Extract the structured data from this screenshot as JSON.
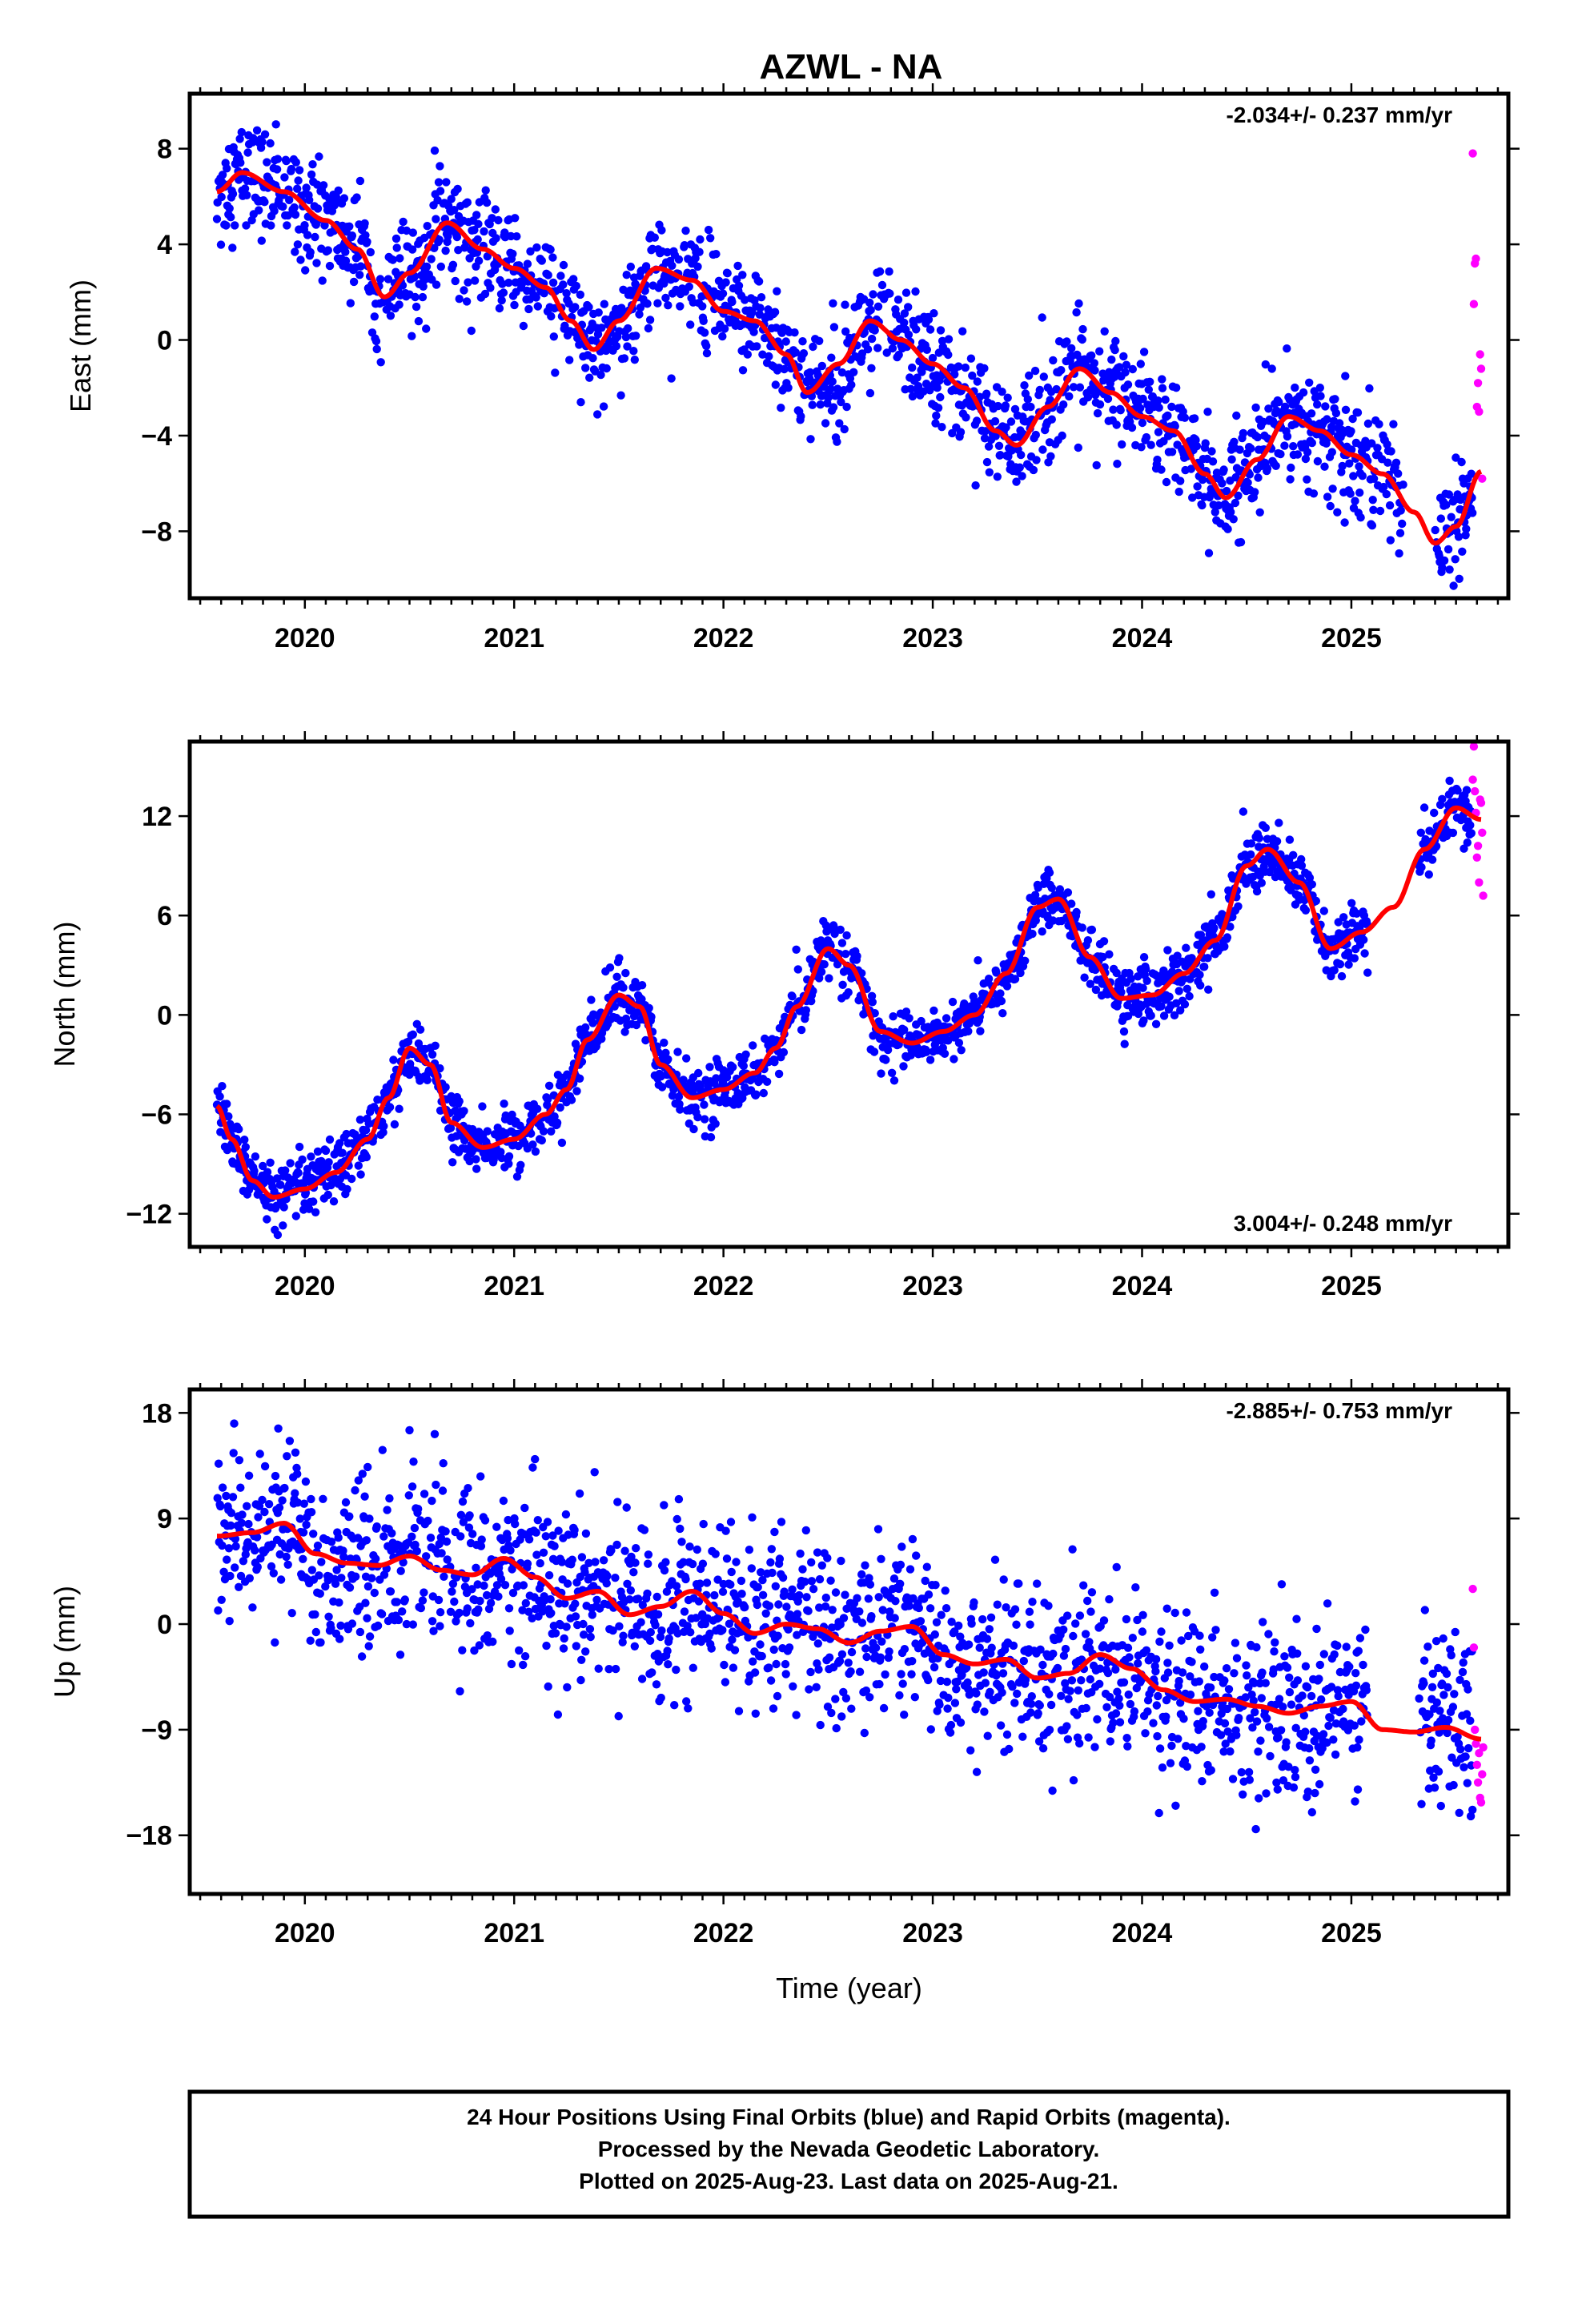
{
  "title": "AZWL - NA",
  "footer": {
    "line1": "24 Hour Positions Using Final Orbits (blue) and Rapid Orbits (magenta).",
    "line2": "Processed by the Nevada Geodetic Laboratory.",
    "line3": "Plotted on 2025-Aug-23. Last data on 2025-Aug-21."
  },
  "colors": {
    "final": "#0000ff",
    "rapid": "#ff00ff",
    "fit": "#ff0000",
    "frame": "#000000"
  },
  "chart_data": [
    {
      "type": "scatter",
      "component": "east",
      "ylabel": "East (mm)",
      "xlabel": "",
      "rate_label": "-2.034+/- 0.237 mm/yr",
      "rate_position": "top-right",
      "xlim": [
        2019.45,
        2025.75
      ],
      "ylim": [
        -10.8,
        10.3
      ],
      "yticks": [
        8,
        4,
        0,
        -4,
        -8
      ],
      "ytick_labels": [
        "8",
        "4",
        "0",
        "−4",
        "−8"
      ],
      "xticks": [
        2020,
        2021,
        2022,
        2023,
        2024,
        2025
      ],
      "xtick_labels": [
        "2020",
        "2021",
        "2022",
        "2023",
        "2024",
        "2025"
      ],
      "grid": false,
      "final_start": 2019.58,
      "final_end": 2025.58,
      "final_gap": [
        2025.25,
        2025.4
      ],
      "noise": 1.1,
      "fit_curve": {
        "x": [
          2019.58,
          2019.7,
          2019.9,
          2020.1,
          2020.25,
          2020.38,
          2020.5,
          2020.68,
          2020.85,
          2021.0,
          2021.15,
          2021.27,
          2021.38,
          2021.5,
          2021.68,
          2021.85,
          2022.0,
          2022.15,
          2022.3,
          2022.4,
          2022.55,
          2022.7,
          2022.85,
          2023.0,
          2023.15,
          2023.3,
          2023.4,
          2023.55,
          2023.7,
          2023.85,
          2024.0,
          2024.15,
          2024.3,
          2024.4,
          2024.55,
          2024.7,
          2024.85,
          2025.0,
          2025.15,
          2025.3,
          2025.4,
          2025.5,
          2025.62
        ],
        "y": [
          6.2,
          7.0,
          6.2,
          5.0,
          3.8,
          1.8,
          2.8,
          4.9,
          3.8,
          3.0,
          2.2,
          0.8,
          -0.4,
          0.8,
          3.0,
          2.5,
          1.2,
          0.8,
          -0.6,
          -2.2,
          -1.0,
          0.8,
          0.0,
          -1.0,
          -2.0,
          -3.8,
          -4.4,
          -2.8,
          -1.2,
          -2.2,
          -3.2,
          -3.8,
          -5.6,
          -6.6,
          -5.0,
          -3.2,
          -3.8,
          -4.8,
          -5.6,
          -7.2,
          -8.5,
          -7.8,
          -5.5
        ]
      },
      "rapid_points": {
        "x": [
          2025.58,
          2025.585,
          2025.59,
          2025.595,
          2025.6,
          2025.605,
          2025.61,
          2025.615,
          2025.62,
          2025.625
        ],
        "y": [
          7.8,
          1.5,
          3.2,
          3.4,
          -2.8,
          -1.8,
          -3.0,
          -0.6,
          -1.2,
          -5.8
        ]
      }
    },
    {
      "type": "scatter",
      "component": "north",
      "ylabel": "North (mm)",
      "xlabel": "",
      "rate_label": "3.004+/- 0.248 mm/yr",
      "rate_position": "bottom-right",
      "xlim": [
        2019.45,
        2025.75
      ],
      "ylim": [
        -14.0,
        16.5
      ],
      "yticks": [
        12,
        6,
        0,
        -6,
        -12
      ],
      "ytick_labels": [
        "12",
        "6",
        "0",
        "−6",
        "−12"
      ],
      "xticks": [
        2020,
        2021,
        2022,
        2023,
        2024,
        2025
      ],
      "xtick_labels": [
        "2020",
        "2021",
        "2022",
        "2023",
        "2024",
        "2025"
      ],
      "grid": false,
      "final_start": 2019.58,
      "final_end": 2025.58,
      "final_gap": [
        2025.08,
        2025.32
      ],
      "noise": 0.9,
      "fit_curve": {
        "x": [
          2019.58,
          2019.65,
          2019.75,
          2019.85,
          2020.0,
          2020.15,
          2020.3,
          2020.4,
          2020.5,
          2020.6,
          2020.7,
          2020.85,
          2021.0,
          2021.15,
          2021.25,
          2021.35,
          2021.5,
          2021.6,
          2021.7,
          2021.85,
          2022.0,
          2022.15,
          2022.25,
          2022.35,
          2022.5,
          2022.6,
          2022.75,
          2022.9,
          2023.05,
          2023.2,
          2023.35,
          2023.5,
          2023.6,
          2023.75,
          2023.9,
          2024.05,
          2024.2,
          2024.35,
          2024.5,
          2024.6,
          2024.75,
          2024.9,
          2025.05,
          2025.2,
          2025.35,
          2025.5,
          2025.62
        ],
        "y": [
          -5.5,
          -7.5,
          -10.0,
          -11.0,
          -10.5,
          -9.5,
          -7.5,
          -5.0,
          -2.0,
          -3.0,
          -6.5,
          -8.0,
          -7.5,
          -6.0,
          -4.5,
          -1.5,
          1.2,
          0.5,
          -3.0,
          -5.0,
          -4.5,
          -3.5,
          -2.0,
          0.5,
          4.0,
          3.0,
          -1.0,
          -1.7,
          -1.0,
          0.0,
          2.5,
          6.5,
          7.0,
          3.5,
          1.0,
          1.2,
          2.5,
          4.5,
          9.0,
          10.0,
          8.0,
          4.0,
          5.0,
          6.5,
          10.0,
          12.5,
          11.8
        ]
      },
      "rapid_points": {
        "x": [
          2025.58,
          2025.585,
          2025.59,
          2025.595,
          2025.6,
          2025.605,
          2025.61,
          2025.615,
          2025.62,
          2025.625,
          2025.63
        ],
        "y": [
          14.2,
          16.2,
          13.5,
          12.2,
          9.5,
          10.2,
          8.0,
          13.0,
          12.8,
          11.0,
          7.2
        ]
      }
    },
    {
      "type": "scatter",
      "component": "up",
      "ylabel": "Up (mm)",
      "xlabel": "Time (year)",
      "rate_label": "-2.885+/- 0.753 mm/yr",
      "rate_position": "top-right",
      "xlim": [
        2019.45,
        2025.75
      ],
      "ylim": [
        -23.0,
        20.0
      ],
      "yticks": [
        18,
        9,
        0,
        -9,
        -18
      ],
      "ytick_labels": [
        "18",
        "9",
        "0",
        "−9",
        "−18"
      ],
      "xticks": [
        2020,
        2021,
        2022,
        2023,
        2024,
        2025
      ],
      "xtick_labels": [
        "2020",
        "2021",
        "2022",
        "2023",
        "2024",
        "2025"
      ],
      "grid": false,
      "final_start": 2019.58,
      "final_end": 2025.58,
      "final_gap": [
        2025.08,
        2025.32
      ],
      "noise": 3.6,
      "fit_curve": {
        "x": [
          2019.58,
          2019.75,
          2019.9,
          2020.05,
          2020.2,
          2020.35,
          2020.5,
          2020.65,
          2020.8,
          2020.95,
          2021.1,
          2021.25,
          2021.4,
          2021.55,
          2021.7,
          2021.85,
          2022.0,
          2022.15,
          2022.3,
          2022.45,
          2022.6,
          2022.75,
          2022.9,
          2023.05,
          2023.2,
          2023.35,
          2023.5,
          2023.65,
          2023.8,
          2023.95,
          2024.1,
          2024.25,
          2024.4,
          2024.55,
          2024.7,
          2024.85,
          2025.0,
          2025.15,
          2025.3,
          2025.45,
          2025.62
        ],
        "y": [
          7.5,
          7.8,
          8.6,
          6.0,
          5.2,
          5.0,
          5.8,
          4.6,
          4.2,
          5.6,
          4.0,
          2.2,
          2.8,
          0.8,
          1.5,
          2.8,
          0.9,
          -0.8,
          0.0,
          -0.4,
          -1.6,
          -0.6,
          -0.2,
          -2.6,
          -3.4,
          -3.0,
          -4.6,
          -4.2,
          -2.6,
          -3.8,
          -5.6,
          -6.6,
          -6.4,
          -7.0,
          -7.6,
          -7.0,
          -6.6,
          -9.0,
          -9.2,
          -8.8,
          -9.8
        ]
      },
      "rapid_points": {
        "x": [
          2025.58,
          2025.585,
          2025.59,
          2025.595,
          2025.6,
          2025.605,
          2025.61,
          2025.615,
          2025.62,
          2025.625,
          2025.63
        ],
        "y": [
          3.0,
          -2.0,
          -9.0,
          -10.2,
          -12.0,
          -13.5,
          -11.0,
          -14.8,
          -15.2,
          -12.8,
          -10.5
        ]
      }
    }
  ]
}
